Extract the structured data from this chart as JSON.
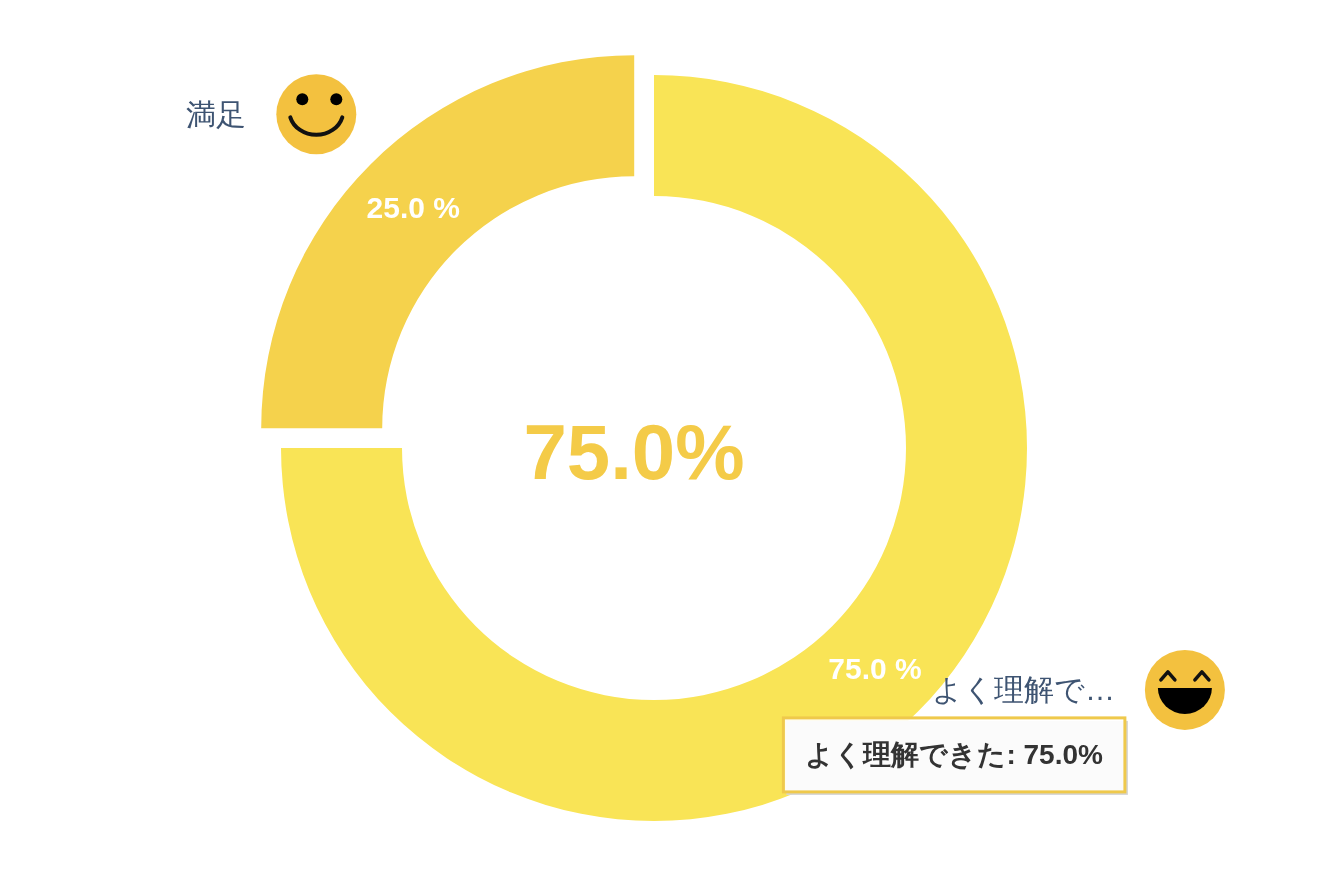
{
  "chart_data": {
    "type": "donut",
    "categories": [
      "よく理解で…",
      "満足"
    ],
    "values": [
      75,
      25
    ],
    "colors": [
      "#f9e456",
      "#f5d24c"
    ],
    "value_labels": [
      "75.0 %",
      "25.0 %"
    ],
    "annotations": [
      "75.0%",
      "よく理解できた: 75.0%"
    ]
  }
}
